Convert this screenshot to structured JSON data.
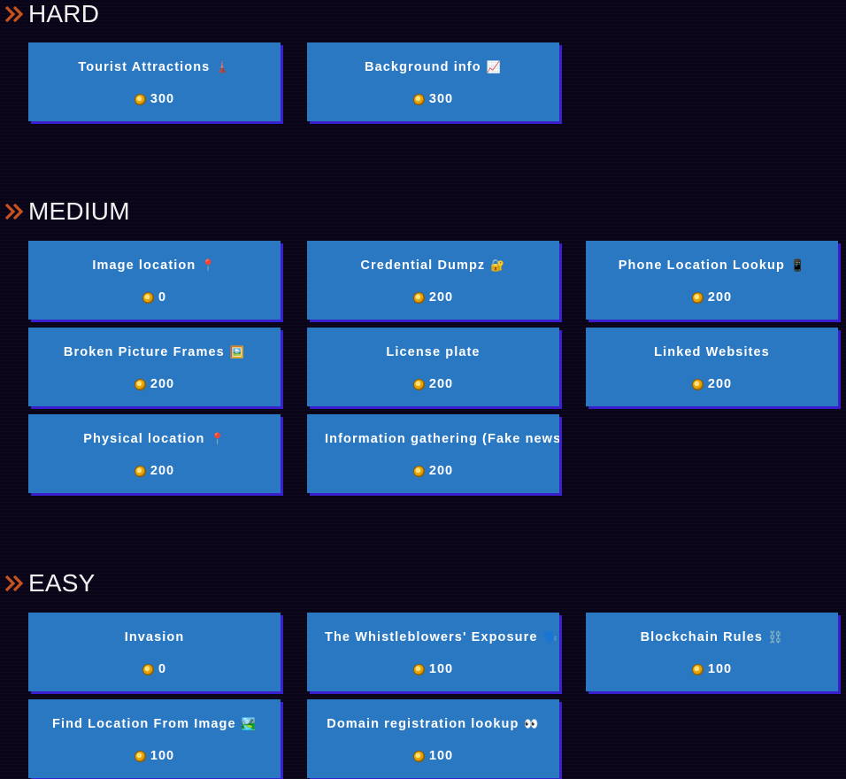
{
  "sections": [
    {
      "title": "HARD",
      "challenges": [
        {
          "name": "Tourist Attractions",
          "emoji": "🗼",
          "points": "300"
        },
        {
          "name": "Background info",
          "emoji": "📈",
          "points": "300"
        }
      ]
    },
    {
      "title": "MEDIUM",
      "challenges": [
        {
          "name": "Image location",
          "emoji": "📍",
          "points": "0"
        },
        {
          "name": "Credential Dumpz",
          "emoji": "🔐",
          "points": "200"
        },
        {
          "name": "Phone Location Lookup",
          "emoji": "📱",
          "points": "200"
        },
        {
          "name": "Broken Picture Frames",
          "emoji": "🖼️",
          "points": "200"
        },
        {
          "name": "License plate",
          "emoji": "",
          "points": "200"
        },
        {
          "name": "Linked Websites",
          "emoji": "",
          "points": "200"
        },
        {
          "name": "Physical location",
          "emoji": "📍",
          "points": "200"
        },
        {
          "name": "Information gathering (Fake news)",
          "emoji": "",
          "points": "200"
        }
      ]
    },
    {
      "title": "EASY",
      "challenges": [
        {
          "name": "Invasion",
          "emoji": "",
          "points": "0"
        },
        {
          "name": "The Whistleblowers' Exposure",
          "emoji": "🗣️",
          "points": "100"
        },
        {
          "name": "Blockchain Rules",
          "emoji": "⛓️",
          "points": "100"
        },
        {
          "name": "Find Location From Image",
          "emoji": "🏞️",
          "points": "100"
        },
        {
          "name": "Domain registration lookup",
          "emoji": "👀",
          "points": "100"
        }
      ]
    }
  ],
  "colors": {
    "card": "#2a78c2",
    "card_shadow": "#3a1fcf",
    "background": "#0a0418",
    "chevron": "#c9531f"
  },
  "icons": {
    "section": "double-chevron-right-icon",
    "points": "coin-icon"
  }
}
